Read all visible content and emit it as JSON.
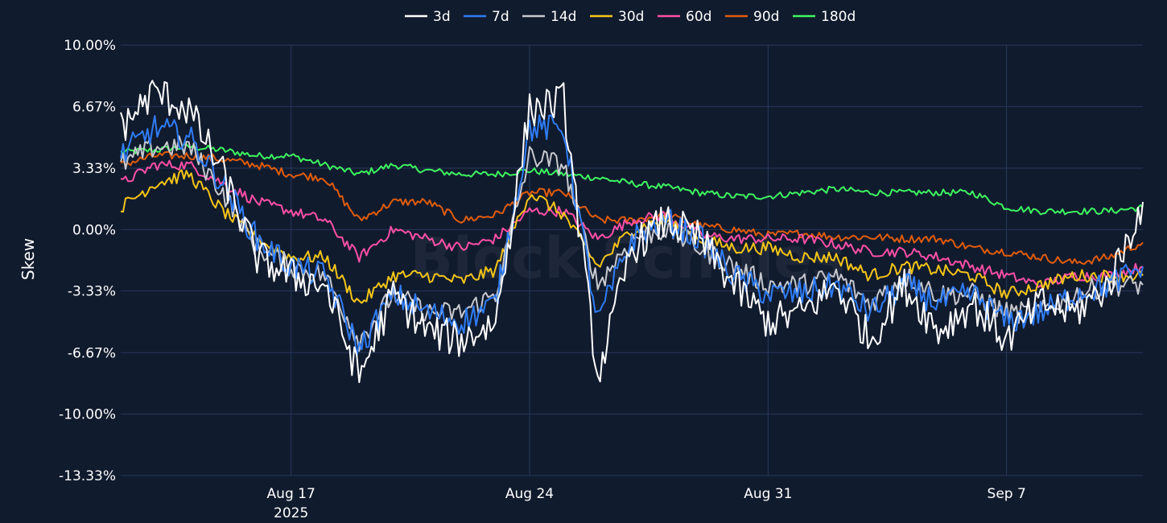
{
  "chart_data": {
    "type": "line",
    "title": "",
    "xlabel": "",
    "ylabel": "Skew",
    "watermark": "Block Scholes",
    "x_ticks": [
      {
        "date": "2025-08-17",
        "label": "Aug 17",
        "sublabel": "2025"
      },
      {
        "date": "2025-08-24",
        "label": "Aug 24",
        "sublabel": ""
      },
      {
        "date": "2025-08-31",
        "label": "Aug 31",
        "sublabel": ""
      },
      {
        "date": "2025-09-07",
        "label": "Sep 7",
        "sublabel": ""
      }
    ],
    "xlim": [
      "2025-08-12",
      "2025-09-11"
    ],
    "y_ticks": [
      "10.00%",
      "6.67%",
      "3.33%",
      "0.00%",
      "-3.33%",
      "-6.67%",
      "-10.00%",
      "-13.33%"
    ],
    "ylim": [
      -13.33,
      10.0
    ],
    "grid": true,
    "legend_position": "top",
    "x": [
      "2025-08-12",
      "2025-08-13",
      "2025-08-14",
      "2025-08-15",
      "2025-08-16",
      "2025-08-17",
      "2025-08-18",
      "2025-08-19",
      "2025-08-20",
      "2025-08-21",
      "2025-08-22",
      "2025-08-23",
      "2025-08-24",
      "2025-08-25",
      "2025-08-26",
      "2025-08-27",
      "2025-08-28",
      "2025-08-29",
      "2025-08-30",
      "2025-08-31",
      "2025-09-01",
      "2025-09-02",
      "2025-09-03",
      "2025-09-04",
      "2025-09-05",
      "2025-09-06",
      "2025-09-07",
      "2025-09-08",
      "2025-09-09",
      "2025-09-10",
      "2025-09-11"
    ],
    "series": [
      {
        "name": "3d",
        "color": "#ffffff",
        "values": [
          5.5,
          7.5,
          6.5,
          3.0,
          -1.5,
          -2.5,
          -3.0,
          -8.0,
          -3.5,
          -5.5,
          -6.0,
          -5.0,
          6.5,
          7.0,
          -8.0,
          -1.0,
          0.5,
          -0.5,
          -3.0,
          -5.0,
          -4.5,
          -3.0,
          -6.0,
          -3.0,
          -5.5,
          -4.0,
          -6.0,
          -4.0,
          -4.5,
          -3.0,
          1.5
        ]
      },
      {
        "name": "7d",
        "color": "#2f7df6",
        "values": [
          4.0,
          5.5,
          5.0,
          2.5,
          -0.5,
          -2.0,
          -2.5,
          -6.5,
          -3.5,
          -4.5,
          -5.0,
          -4.0,
          5.5,
          5.5,
          -5.0,
          -0.5,
          0.5,
          -0.5,
          -2.5,
          -3.5,
          -3.5,
          -3.0,
          -4.5,
          -3.0,
          -4.0,
          -3.5,
          -5.0,
          -4.5,
          -3.5,
          -3.0,
          -2.0
        ]
      },
      {
        "name": "14d",
        "color": "#c7c9cf",
        "values": [
          3.5,
          4.5,
          4.5,
          2.0,
          -1.0,
          -2.0,
          -2.5,
          -6.0,
          -3.5,
          -4.5,
          -4.5,
          -3.5,
          4.0,
          3.5,
          -3.0,
          -0.5,
          0.0,
          -1.0,
          -2.0,
          -3.0,
          -3.0,
          -2.5,
          -4.0,
          -2.5,
          -3.5,
          -3.5,
          -4.5,
          -4.5,
          -3.5,
          -3.0,
          -3.0
        ]
      },
      {
        "name": "30d",
        "color": "#f5c518",
        "values": [
          1.2,
          2.5,
          3.0,
          1.0,
          -0.5,
          -1.5,
          -1.5,
          -4.0,
          -2.5,
          -2.5,
          -2.8,
          -2.2,
          2.0,
          0.8,
          -2.0,
          0.0,
          0.5,
          -0.5,
          -1.0,
          -1.0,
          -1.5,
          -1.5,
          -2.5,
          -2.0,
          -2.2,
          -2.5,
          -3.5,
          -3.0,
          -2.5,
          -2.5,
          -2.5
        ]
      },
      {
        "name": "60d",
        "color": "#ff4fa7",
        "values": [
          2.5,
          3.5,
          3.5,
          2.5,
          1.5,
          1.0,
          0.5,
          -1.5,
          0.0,
          -0.5,
          -1.0,
          -0.5,
          1.0,
          1.0,
          -0.5,
          0.5,
          0.8,
          -0.3,
          -0.5,
          -0.5,
          -0.5,
          -0.8,
          -1.2,
          -1.2,
          -1.5,
          -2.0,
          -2.5,
          -3.0,
          -2.5,
          -2.5,
          -2.0
        ]
      },
      {
        "name": "90d",
        "color": "#e05c0c",
        "values": [
          3.5,
          4.0,
          4.0,
          3.8,
          3.5,
          3.0,
          2.8,
          0.5,
          1.5,
          1.5,
          0.5,
          0.8,
          2.0,
          2.0,
          0.5,
          0.5,
          0.8,
          0.2,
          0.0,
          -0.3,
          -0.2,
          -0.4,
          -0.4,
          -0.5,
          -0.5,
          -1.0,
          -1.2,
          -1.5,
          -1.8,
          -1.5,
          -0.7
        ]
      },
      {
        "name": "180d",
        "color": "#3df55f",
        "values": [
          4.2,
          4.3,
          4.5,
          4.3,
          4.0,
          4.0,
          3.5,
          3.0,
          3.5,
          3.2,
          3.0,
          3.0,
          3.2,
          3.0,
          2.8,
          2.5,
          2.3,
          2.0,
          1.8,
          1.8,
          2.0,
          2.2,
          2.0,
          2.0,
          2.0,
          2.0,
          1.2,
          1.0,
          1.0,
          1.0,
          1.2
        ]
      }
    ]
  }
}
